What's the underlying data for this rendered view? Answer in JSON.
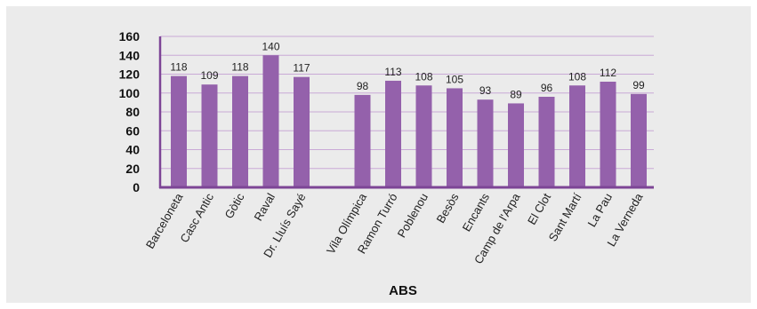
{
  "chart_data": {
    "type": "bar",
    "title": "",
    "xlabel": "ABS",
    "ylabel": "",
    "ylim": [
      0,
      160
    ],
    "yticks": [
      0,
      20,
      40,
      60,
      80,
      100,
      120,
      140,
      160
    ],
    "grid": true,
    "legend": "none",
    "bar_color": "#9461ab",
    "axis_color": "#7d4596",
    "grid_color": "#c9a9d6",
    "categories": [
      "Barceloneta",
      "Casc Antic",
      "Gòtic",
      "Raval",
      "Dr. Lluís Sayé",
      "Vila Olímpica",
      "Ramon Turró",
      "Poblenou",
      "Besòs",
      "Encants",
      "Camp de l'Arpa",
      "El Clot",
      "Sant Martí",
      "La Pau",
      "La Verneda"
    ],
    "values": [
      118,
      109,
      118,
      140,
      117,
      98,
      113,
      108,
      105,
      93,
      89,
      96,
      108,
      112,
      99
    ]
  }
}
